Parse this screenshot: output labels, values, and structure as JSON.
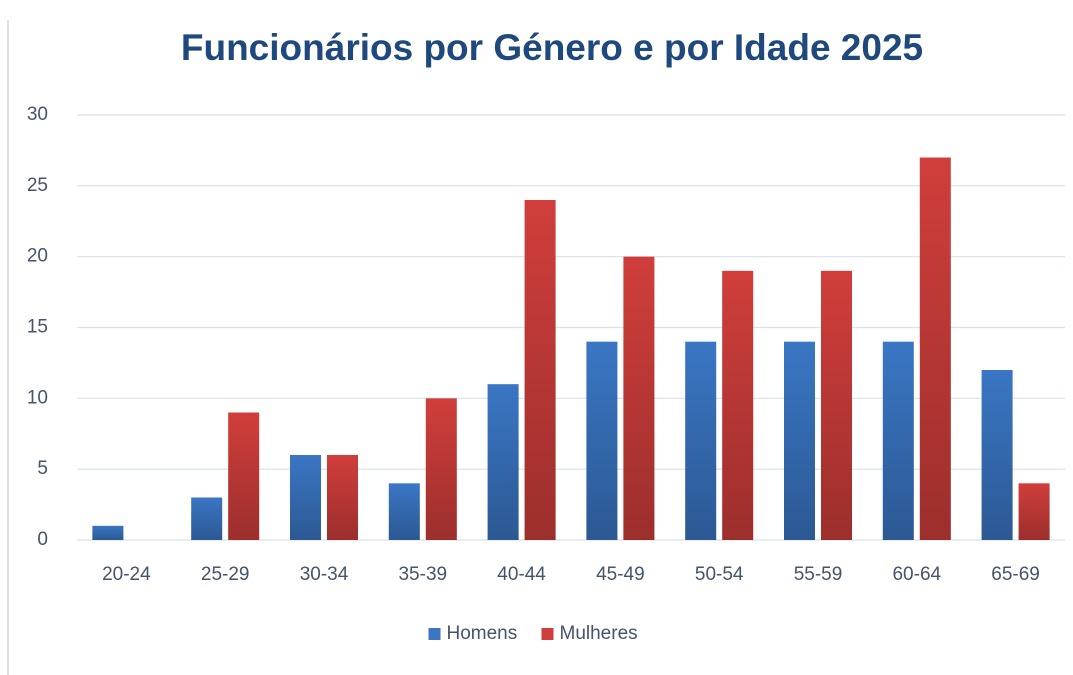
{
  "chart_data": {
    "type": "bar",
    "title": "Funcionários por Género e por Idade 2025",
    "categories": [
      "20-24",
      "25-29",
      "30-34",
      "35-39",
      "40-44",
      "45-49",
      "50-54",
      "55-59",
      "60-64",
      "65-69"
    ],
    "series": [
      {
        "name": "Homens",
        "color": "#3a76c4",
        "values": [
          1,
          3,
          6,
          4,
          11,
          14,
          14,
          14,
          14,
          12
        ]
      },
      {
        "name": "Mulheres",
        "color": "#d03e3b",
        "values": [
          0,
          9,
          6,
          10,
          24,
          20,
          19,
          19,
          27,
          4
        ]
      }
    ],
    "ylim": [
      0,
      30
    ],
    "yticks": [
      0,
      5,
      10,
      15,
      20,
      25,
      30
    ],
    "grid": true,
    "legend": "bottom"
  }
}
